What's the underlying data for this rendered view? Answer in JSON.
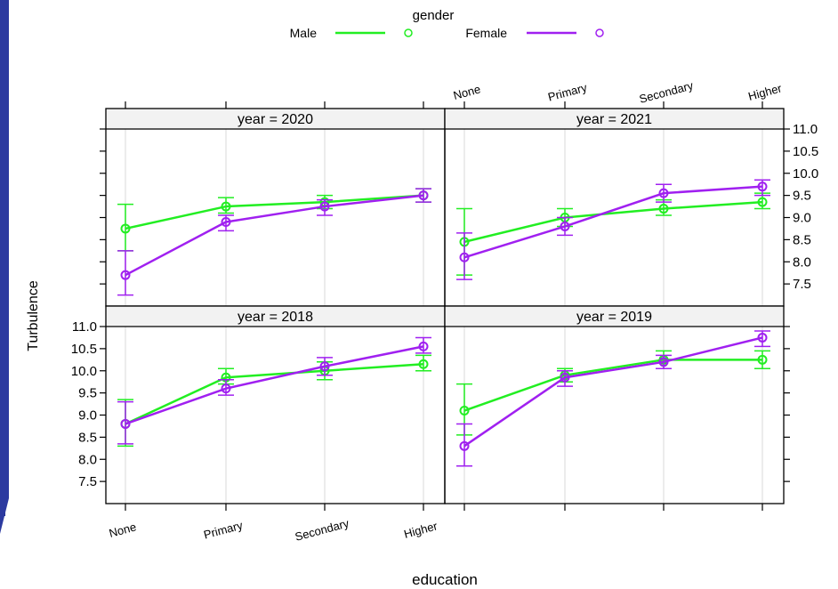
{
  "chart_data": {
    "type": "line",
    "legend": {
      "title": "gender",
      "position": "top",
      "entries": [
        {
          "name": "Male",
          "color": "#22ee22"
        },
        {
          "name": "Female",
          "color": "#a020f0"
        }
      ]
    },
    "xlabel": "education",
    "ylabel": "Turbulence",
    "categories": [
      "None",
      "Primary",
      "Secondary",
      "Higher"
    ],
    "ylim": [
      7.0,
      11.0
    ],
    "yticks": [
      7.5,
      8.0,
      8.5,
      9.0,
      9.5,
      10.0,
      10.5,
      11.0
    ],
    "ytick_labels": [
      "7.5",
      "8.0",
      "8.5",
      "9.0",
      "9.5",
      "10.0",
      "10.5",
      "11.0"
    ],
    "grid": true,
    "error_bars": true,
    "panels": [
      {
        "strip": "year = 2020",
        "series": [
          {
            "name": "Male",
            "values": [
              8.75,
              9.25,
              9.35,
              9.5
            ],
            "lower": [
              8.25,
              9.1,
              9.2,
              9.35
            ],
            "upper": [
              9.3,
              9.45,
              9.5,
              9.65
            ]
          },
          {
            "name": "Female",
            "values": [
              7.7,
              8.9,
              9.25,
              9.5
            ],
            "lower": [
              7.25,
              8.7,
              9.05,
              9.35
            ],
            "upper": [
              8.25,
              9.05,
              9.4,
              9.65
            ]
          }
        ]
      },
      {
        "strip": "year = 2021",
        "series": [
          {
            "name": "Male",
            "values": [
              8.45,
              9.0,
              9.2,
              9.35
            ],
            "lower": [
              7.7,
              8.8,
              9.05,
              9.2
            ],
            "upper": [
              9.2,
              9.2,
              9.4,
              9.55
            ]
          },
          {
            "name": "Female",
            "values": [
              8.1,
              8.8,
              9.55,
              9.7
            ],
            "lower": [
              7.6,
              8.6,
              9.35,
              9.5
            ],
            "upper": [
              8.65,
              9.0,
              9.75,
              9.85
            ]
          }
        ]
      },
      {
        "strip": "year = 2018",
        "series": [
          {
            "name": "Male",
            "values": [
              8.8,
              9.85,
              10.0,
              10.15
            ],
            "lower": [
              8.3,
              9.7,
              9.8,
              10.0
            ],
            "upper": [
              9.35,
              10.05,
              10.2,
              10.35
            ]
          },
          {
            "name": "Female",
            "values": [
              8.8,
              9.6,
              10.1,
              10.55
            ],
            "lower": [
              8.35,
              9.45,
              9.9,
              10.4
            ],
            "upper": [
              9.3,
              9.8,
              10.3,
              10.75
            ]
          }
        ]
      },
      {
        "strip": "year = 2019",
        "series": [
          {
            "name": "Male",
            "values": [
              9.1,
              9.9,
              10.25,
              10.25
            ],
            "lower": [
              8.55,
              9.75,
              10.05,
              10.05
            ],
            "upper": [
              9.7,
              10.05,
              10.45,
              10.45
            ]
          },
          {
            "name": "Female",
            "values": [
              8.3,
              9.85,
              10.2,
              10.75
            ],
            "lower": [
              7.85,
              9.65,
              10.05,
              10.55
            ],
            "upper": [
              8.8,
              10.0,
              10.35,
              10.9
            ]
          }
        ]
      }
    ]
  }
}
